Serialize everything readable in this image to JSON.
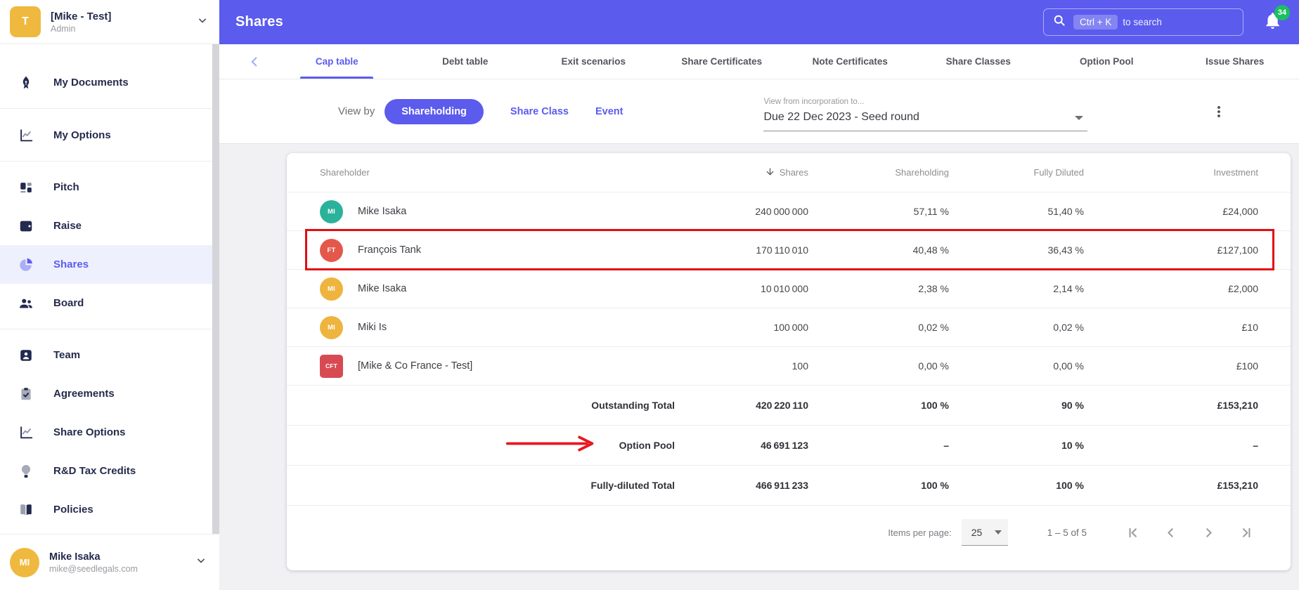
{
  "org": {
    "initial": "T",
    "name": "[Mike - Test]",
    "role": "Admin"
  },
  "sidebar": {
    "groups": [
      {
        "items": [
          {
            "icon": "pen-nib",
            "label": "My Documents",
            "active": false
          }
        ]
      },
      {
        "items": [
          {
            "icon": "line-chart",
            "label": "My Options",
            "active": false
          }
        ]
      },
      {
        "items": [
          {
            "icon": "pitch",
            "label": "Pitch",
            "active": false
          },
          {
            "icon": "wallet",
            "label": "Raise",
            "active": false
          },
          {
            "icon": "pie-chart",
            "label": "Shares",
            "active": true
          },
          {
            "icon": "people",
            "label": "Board",
            "active": false
          }
        ]
      },
      {
        "items": [
          {
            "icon": "badge",
            "label": "Team",
            "active": false
          },
          {
            "icon": "clipboard-check",
            "label": "Agreements",
            "active": false
          },
          {
            "icon": "line-chart",
            "label": "Share Options",
            "active": false
          },
          {
            "icon": "lightbulb",
            "label": "R&D Tax Credits",
            "active": false
          },
          {
            "icon": "book",
            "label": "Policies",
            "active": false
          }
        ]
      }
    ],
    "user": {
      "initials": "MI",
      "name": "Mike Isaka",
      "email": "mike@seedlegals.com"
    }
  },
  "header": {
    "title": "Shares",
    "search_shortcut": "Ctrl + K",
    "search_hint": "to search",
    "notification_count": "34"
  },
  "tabs": {
    "items": [
      "Cap table",
      "Debt table",
      "Exit scenarios",
      "Share Certificates",
      "Note Certificates",
      "Share Classes",
      "Option Pool",
      "Issue Shares"
    ],
    "active": "Cap table"
  },
  "filters": {
    "view_by_label": "View by",
    "selected": "Shareholding",
    "option2": "Share Class",
    "option3": "Event",
    "range_label": "View from incorporation to...",
    "range_value": "Due 22 Dec 2023 - Seed round"
  },
  "colors": {
    "accent_purple": "#5b5bee",
    "highlight_red": "#e20d12",
    "badge_green": "#1cbf60"
  },
  "table": {
    "columns": [
      "Shareholder",
      "Shares",
      "Shareholding",
      "Fully Diluted",
      "Investment"
    ],
    "sorted_column": "Shares",
    "rows": [
      {
        "avatar": "MI",
        "avatar_color": "#2bb29b",
        "shape": "circle",
        "name": "Mike Isaka",
        "shares": "240 000 000",
        "shareholding": "57,11 %",
        "fully_diluted": "51,40 %",
        "investment": "£24,000",
        "highlighted": false
      },
      {
        "avatar": "FT",
        "avatar_color": "#e4584b",
        "shape": "circle",
        "name": "François Tank",
        "shares": "170 110 010",
        "shareholding": "40,48 %",
        "fully_diluted": "36,43 %",
        "investment": "£127,100",
        "highlighted": true
      },
      {
        "avatar": "MI",
        "avatar_color": "#eeb43e",
        "shape": "circle",
        "name": "Mike Isaka",
        "shares": "10 010 000",
        "shareholding": "2,38 %",
        "fully_diluted": "2,14 %",
        "investment": "£2,000",
        "highlighted": false
      },
      {
        "avatar": "MI",
        "avatar_color": "#eeb43e",
        "shape": "circle",
        "name": "Miki Is",
        "shares": "100 000",
        "shareholding": "0,02 %",
        "fully_diluted": "0,02 %",
        "investment": "£10",
        "highlighted": false
      },
      {
        "avatar": "CFT",
        "avatar_color": "#d84a52",
        "shape": "square",
        "name": "[Mike & Co France - Test]",
        "shares": "100",
        "shareholding": "0,00 %",
        "fully_diluted": "0,00 %",
        "investment": "£100",
        "highlighted": false
      }
    ],
    "totals": [
      {
        "label": "Outstanding Total",
        "shares": "420 220 110",
        "shareholding": "100 %",
        "fully_diluted": "90 %",
        "investment": "£153,210",
        "arrow": false
      },
      {
        "label": "Option Pool",
        "shares": "46 691 123",
        "shareholding": "–",
        "fully_diluted": "10 %",
        "investment": "–",
        "arrow": true
      },
      {
        "label": "Fully-diluted Total",
        "shares": "466 911 233",
        "shareholding": "100 %",
        "fully_diluted": "100 %",
        "investment": "£153,210",
        "arrow": false
      }
    ],
    "pagination": {
      "items_per_page_label": "Items per page:",
      "items_per_page": "25",
      "range": "1 – 5 of 5"
    }
  }
}
